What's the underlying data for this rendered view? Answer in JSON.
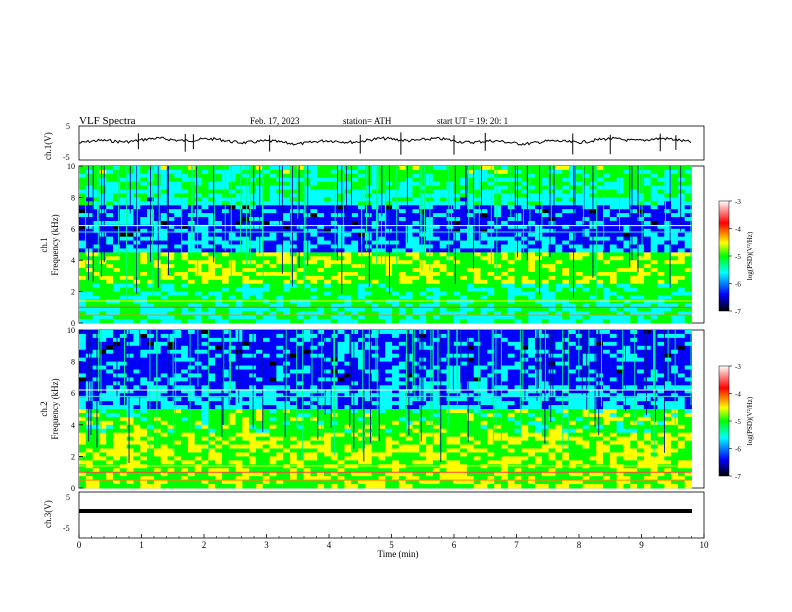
{
  "header": {
    "title": "VLF  Spectra",
    "date": "Feb. 17, 2023",
    "station": "station= ATH",
    "start": "start  UT  =    19: 20: 1"
  },
  "chart_data": [
    {
      "type": "line",
      "name": "ch1-waveform",
      "ylabel": "ch.1(V)",
      "yticks": [
        "5",
        "-5"
      ],
      "ylim": [
        -5,
        5
      ],
      "xlim": [
        0,
        10
      ],
      "series": [
        {
          "description": "noisy waveform near +0 V with occasional spikes",
          "baseline": 0
        }
      ]
    },
    {
      "type": "heatmap",
      "name": "ch1-spectrogram",
      "ylabel": "ch.1\nFrequency (kHz)",
      "ylabel_line1": "ch.1",
      "ylabel_line2": "Frequency (kHz)",
      "yticks": [
        "0",
        "2",
        "4",
        "6",
        "8",
        "10"
      ],
      "ylim": [
        0,
        10
      ],
      "xlim": [
        0,
        9.8
      ],
      "colorbar": {
        "label": "log(PSD)(V²/Hz)",
        "ticks": [
          "-3",
          "-4",
          "-5",
          "-6",
          "-7"
        ],
        "range": [
          -7,
          -3
        ]
      }
    },
    {
      "type": "heatmap",
      "name": "ch2-spectrogram",
      "ylabel_line1": "ch.2",
      "ylabel_line2": "Frequency (kHz)",
      "yticks": [
        "0",
        "2",
        "4",
        "6",
        "8",
        "10"
      ],
      "ylim": [
        0,
        10
      ],
      "xlim": [
        0,
        9.8
      ],
      "colorbar": {
        "label": "log(PSD)(V²/Hz)",
        "ticks": [
          "-3",
          "-4",
          "-5",
          "-6",
          "-7"
        ],
        "range": [
          -7,
          -3
        ]
      }
    },
    {
      "type": "line",
      "name": "ch3-waveform",
      "ylabel": "ch.3(V)",
      "yticks": [
        "5",
        "-5"
      ],
      "ylim": [
        -5,
        5
      ],
      "xlim": [
        0,
        10
      ],
      "series": [
        {
          "description": "flat line",
          "baseline": -1.3
        }
      ]
    }
  ],
  "xaxis": {
    "label": "Time  (min)",
    "ticks": [
      "0",
      "1",
      "2",
      "3",
      "4",
      "5",
      "6",
      "7",
      "8",
      "9",
      "10"
    ],
    "range": [
      0,
      10
    ]
  },
  "colormap": [
    "#000000",
    "#0000ff",
    "#00ffff",
    "#00ff00",
    "#ffff00",
    "#ff0000",
    "#ffffff"
  ]
}
